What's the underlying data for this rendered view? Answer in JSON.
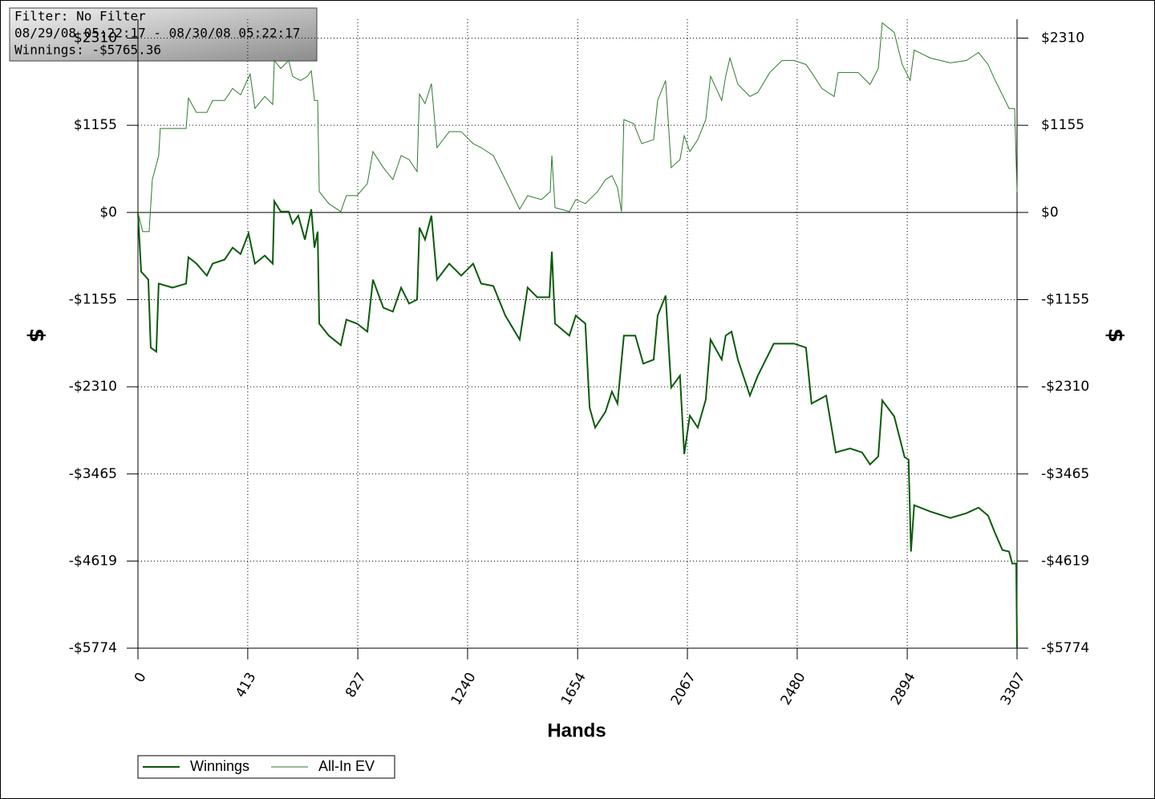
{
  "chart_data": {
    "type": "line",
    "info": [
      "Filter: No Filter",
      "08/29/08 05:22:17 - 08/30/08 05:22:17",
      "Winnings: -$5765.36"
    ],
    "x_label": "Hands",
    "y_label": "$",
    "xlim": [
      0,
      3307
    ],
    "xticks": [
      0,
      413,
      827,
      1240,
      1654,
      2067,
      2480,
      2894,
      3307
    ],
    "ylim": [
      -5774,
      2560
    ],
    "yticks": [
      {
        "value": 2310,
        "label": "$2310"
      },
      {
        "value": 1155,
        "label": "$1155"
      },
      {
        "value": 0,
        "label": "$0"
      },
      {
        "value": -1155,
        "label": "-$1155"
      },
      {
        "value": -2310,
        "label": "-$2310"
      },
      {
        "value": -3465,
        "label": "-$3465"
      },
      {
        "value": -4619,
        "label": "-$4619"
      },
      {
        "value": -5774,
        "label": "-$5774"
      }
    ],
    "grid": true,
    "series": [
      {
        "name": "Winnings",
        "color": "#0b5a0b",
        "width": 2,
        "x": [
          0,
          12,
          39,
          48,
          69,
          78,
          130,
          181,
          190,
          220,
          259,
          281,
          326,
          356,
          386,
          416,
          440,
          477,
          507,
          513,
          537,
          567,
          582,
          603,
          628,
          652,
          664,
          676,
          682,
          718,
          763,
          784,
          824,
          863,
          884,
          923,
          959,
          990,
          1020,
          1050,
          1059,
          1080,
          1104,
          1125,
          1171,
          1216,
          1261,
          1291,
          1337,
          1382,
          1436,
          1466,
          1502,
          1548,
          1557,
          1569,
          1623,
          1647,
          1683,
          1699,
          1720,
          1759,
          1783,
          1804,
          1828,
          1871,
          1901,
          1940,
          1955,
          1985,
          2006,
          2039,
          2055,
          2076,
          2106,
          2136,
          2154,
          2196,
          2211,
          2233,
          2257,
          2302,
          2332,
          2392,
          2468,
          2513,
          2534,
          2589,
          2625,
          2679,
          2724,
          2754,
          2785,
          2800,
          2845,
          2884,
          2899,
          2908,
          2920,
          2981,
          3056,
          3117,
          3162,
          3198,
          3222,
          3252,
          3277,
          3289,
          3304,
          3307
        ],
        "values": [
          0,
          -784,
          -890,
          -1791,
          -1844,
          -943,
          -996,
          -943,
          -594,
          -678,
          -837,
          -678,
          -625,
          -466,
          -551,
          -276,
          -678,
          -572,
          -678,
          148,
          11,
          11,
          -148,
          -42,
          -360,
          42,
          -466,
          -254,
          -1473,
          -1632,
          -1759,
          -1420,
          -1473,
          -1579,
          -890,
          -1262,
          -1314,
          -996,
          -1208,
          -1155,
          -201,
          -360,
          -42,
          -890,
          -678,
          -837,
          -678,
          -943,
          -975,
          -1367,
          -1685,
          -996,
          -1123,
          -1123,
          -519,
          -1473,
          -1632,
          -1367,
          -1473,
          -2586,
          -2851,
          -2639,
          -2374,
          -2533,
          -1632,
          -1632,
          -2003,
          -1950,
          -1367,
          -1102,
          -2321,
          -2162,
          -3201,
          -2692,
          -2851,
          -2480,
          -1685,
          -1950,
          -1632,
          -1579,
          -1950,
          -2427,
          -2162,
          -1738,
          -1738,
          -1791,
          -2533,
          -2427,
          -3180,
          -3127,
          -3180,
          -3339,
          -3233,
          -2491,
          -2703,
          -3243,
          -3275,
          -4494,
          -3879,
          -3964,
          -4049,
          -3985,
          -3911,
          -4017,
          -4229,
          -4473,
          -4494,
          -4653,
          -4653,
          -5765
        ]
      },
      {
        "name": "All-In EV",
        "color": "#2f7a2f",
        "width": 1,
        "x": [
          0,
          18,
          42,
          54,
          78,
          84,
          130,
          181,
          190,
          220,
          259,
          281,
          326,
          356,
          386,
          422,
          440,
          477,
          507,
          513,
          537,
          567,
          582,
          612,
          637,
          652,
          664,
          676,
          682,
          718,
          763,
          784,
          824,
          863,
          884,
          923,
          959,
          990,
          1020,
          1050,
          1059,
          1080,
          1104,
          1125,
          1171,
          1216,
          1261,
          1291,
          1337,
          1382,
          1436,
          1466,
          1518,
          1551,
          1557,
          1569,
          1623,
          1647,
          1683,
          1729,
          1759,
          1783,
          1804,
          1819,
          1828,
          1865,
          1895,
          1940,
          1955,
          1985,
          2006,
          2039,
          2055,
          2076,
          2106,
          2136,
          2154,
          2196,
          2211,
          2227,
          2257,
          2302,
          2332,
          2377,
          2423,
          2468,
          2513,
          2534,
          2573,
          2619,
          2634,
          2709,
          2754,
          2785,
          2800,
          2845,
          2875,
          2905,
          2920,
          2981,
          3056,
          3117,
          3162,
          3198,
          3222,
          3252,
          3277,
          3298,
          3307
        ],
        "values": [
          0,
          -254,
          -254,
          434,
          753,
          1113,
          1113,
          1113,
          1516,
          1325,
          1325,
          1484,
          1484,
          1643,
          1558,
          1834,
          1378,
          1537,
          1431,
          2014,
          1908,
          2014,
          1802,
          1749,
          1802,
          1876,
          1484,
          1484,
          276,
          117,
          11,
          223,
          223,
          382,
          806,
          594,
          435,
          753,
          700,
          541,
          1569,
          1442,
          1707,
          859,
          1071,
          1071,
          912,
          859,
          753,
          435,
          42,
          223,
          170,
          276,
          753,
          64,
          11,
          170,
          117,
          276,
          435,
          488,
          329,
          11,
          1230,
          1177,
          912,
          965,
          1484,
          1749,
          594,
          700,
          1018,
          806,
          965,
          1230,
          1806,
          1484,
          1806,
          2046,
          1696,
          1537,
          1590,
          1855,
          2014,
          2014,
          1961,
          1855,
          1643,
          1537,
          1855,
          1855,
          1696,
          1908,
          2512,
          2385,
          1961,
          1749,
          2152,
          2046,
          1982,
          2014,
          2120,
          1961,
          1770,
          1558,
          1378,
          1378,
          276
        ]
      }
    ]
  }
}
